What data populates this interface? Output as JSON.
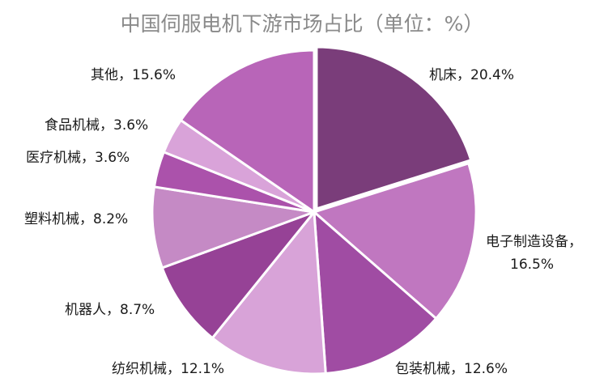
{
  "chart_data": {
    "type": "pie",
    "title": "中国伺服电机下游市场占比（单位：%）",
    "slices": [
      {
        "label": "机床，20.4%",
        "value": 20.4,
        "color": "#7a3d7a"
      },
      {
        "label": "电子制造设备，\n16.5%",
        "value": 16.5,
        "color": "#c077c0"
      },
      {
        "label": "包装机械，12.6%",
        "value": 12.6,
        "color": "#a04ca3"
      },
      {
        "label": "纺织机械，12.1%",
        "value": 12.1,
        "color": "#d8a3d8"
      },
      {
        "label": "机器人，8.7%",
        "value": 8.7,
        "color": "#964296"
      },
      {
        "label": "塑料机械，8.2%",
        "value": 8.2,
        "color": "#c58ac5"
      },
      {
        "label": "医疗机械，3.6%",
        "value": 3.6,
        "color": "#ab52ab"
      },
      {
        "label": "食品机械，3.6%",
        "value": 3.6,
        "color": "#d9a3d9"
      },
      {
        "label": "其他，15.6%",
        "value": 15.6,
        "color": "#b865b8"
      }
    ]
  }
}
